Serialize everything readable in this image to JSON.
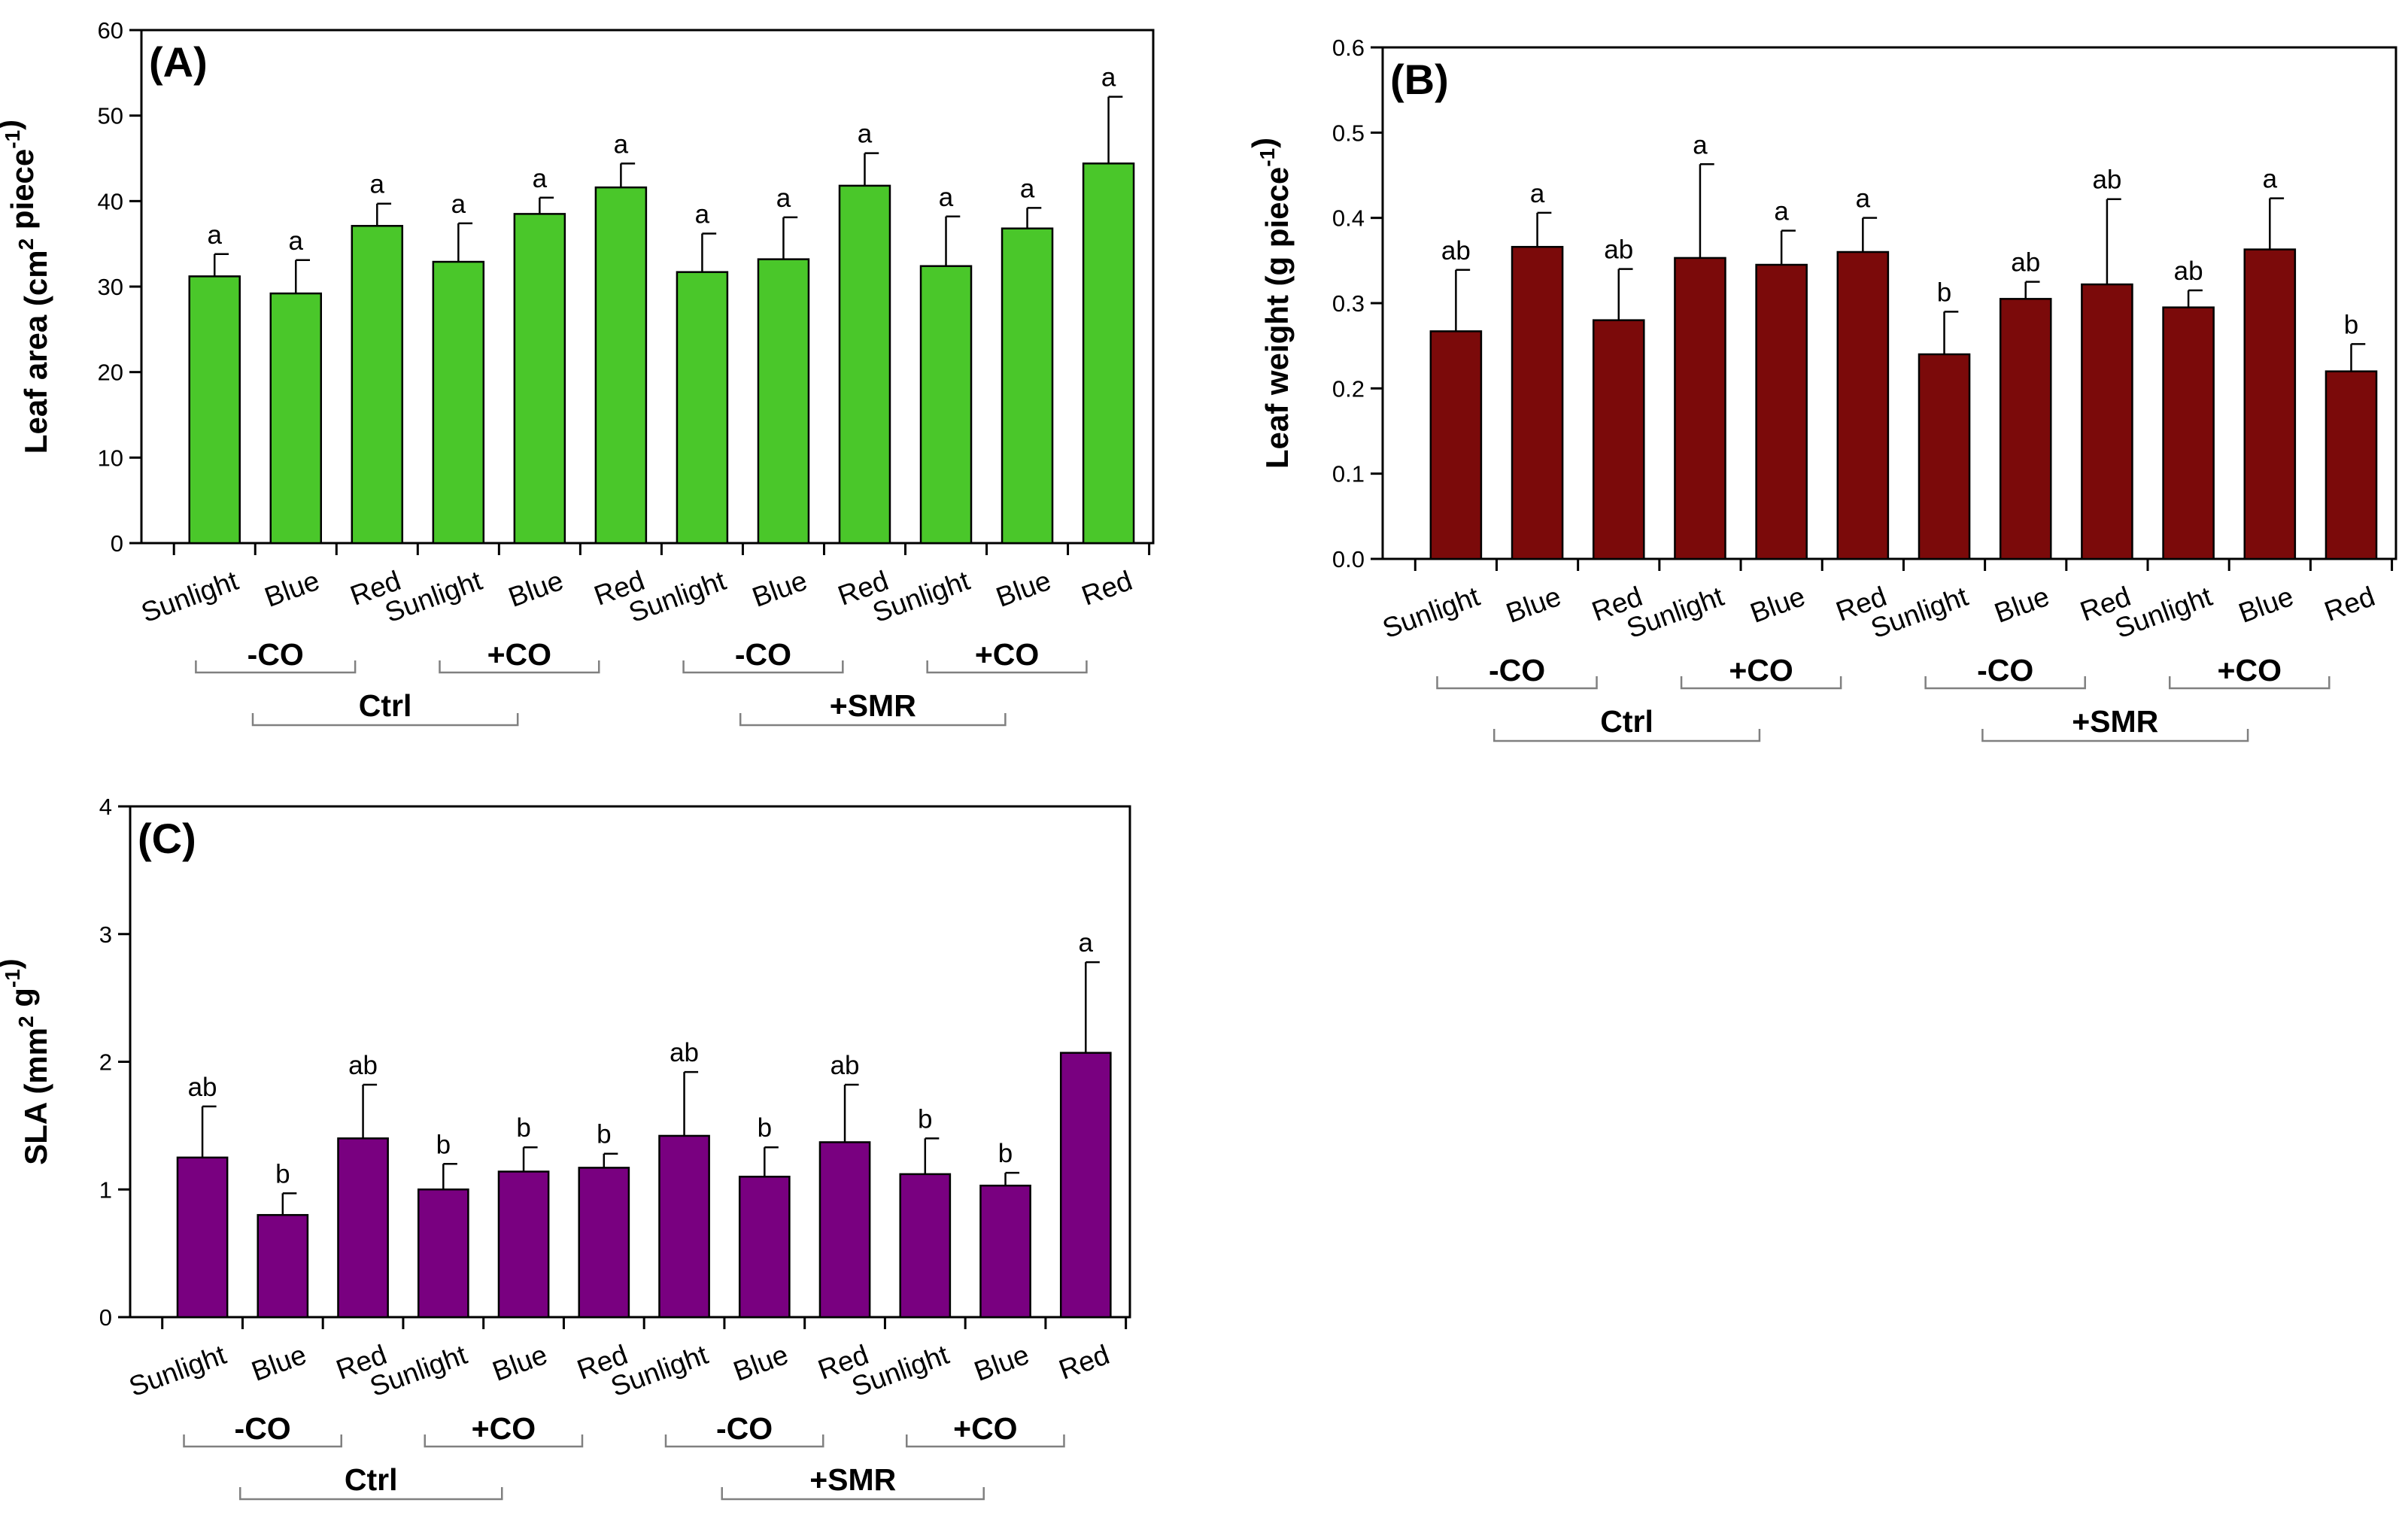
{
  "chart_data": [
    {
      "type": "bar",
      "panel_label": "(A)",
      "ylabel": {
        "prefix": "Leaf area (cm",
        "sup1": "2",
        "middle": " piece",
        "sup2": "-1",
        "suffix": ")"
      },
      "ylim": [
        0,
        60
      ],
      "yticks": [
        "0",
        "10",
        "20",
        "30",
        "40",
        "50",
        "60"
      ],
      "bar_color": "#4ac72a",
      "categories": [
        "Sunlight",
        "Blue",
        "Red",
        "Sunlight",
        "Blue",
        "Red",
        "Sunlight",
        "Blue",
        "Red",
        "Sunlight",
        "Blue",
        "Red"
      ],
      "values": [
        31.2,
        29.2,
        37.1,
        32.9,
        38.5,
        41.6,
        31.7,
        33.2,
        41.8,
        32.4,
        36.8,
        44.4
      ],
      "errors": [
        2.6,
        3.9,
        2.6,
        4.5,
        1.9,
        2.8,
        4.5,
        4.9,
        3.8,
        5.8,
        2.4,
        7.8
      ],
      "letters": [
        "a",
        "a",
        "a",
        "a",
        "a",
        "a",
        "a",
        "a",
        "a",
        "a",
        "a",
        "a"
      ],
      "groups_inner": [
        "-CO",
        "+CO",
        "-CO",
        "+CO"
      ],
      "groups_outer": [
        "Ctrl",
        "+SMR"
      ]
    },
    {
      "type": "bar",
      "panel_label": "(B)",
      "ylabel": {
        "prefix": "Leaf weight (g piece",
        "sup1": "",
        "middle": "",
        "sup2": "-1",
        "suffix": ")"
      },
      "ylim": [
        0,
        0.6
      ],
      "yticks": [
        "0.0",
        "0.1",
        "0.2",
        "0.3",
        "0.4",
        "0.5",
        "0.6"
      ],
      "bar_color": "#7b0a0a",
      "categories": [
        "Sunlight",
        "Blue",
        "Red",
        "Sunlight",
        "Blue",
        "Red",
        "Sunlight",
        "Blue",
        "Red",
        "Sunlight",
        "Blue",
        "Red"
      ],
      "values": [
        0.267,
        0.366,
        0.28,
        0.353,
        0.345,
        0.36,
        0.24,
        0.305,
        0.322,
        0.295,
        0.363,
        0.22
      ],
      "errors": [
        0.072,
        0.04,
        0.06,
        0.11,
        0.04,
        0.04,
        0.05,
        0.02,
        0.1,
        0.02,
        0.06,
        0.032
      ],
      "letters": [
        "ab",
        "a",
        "ab",
        "a",
        "a",
        "a",
        "b",
        "ab",
        "ab",
        "ab",
        "a",
        "b"
      ],
      "groups_inner": [
        "-CO",
        "+CO",
        "-CO",
        "+CO"
      ],
      "groups_outer": [
        "Ctrl",
        "+SMR"
      ]
    },
    {
      "type": "bar",
      "panel_label": "(C)",
      "ylabel": {
        "prefix": "SLA (mm",
        "sup1": "2",
        "middle": " g",
        "sup2": "-1",
        "suffix": ")"
      },
      "ylim": [
        0,
        4
      ],
      "yticks": [
        "0",
        "1",
        "2",
        "3",
        "4"
      ],
      "bar_color": "#790080",
      "categories": [
        "Sunlight",
        "Blue",
        "Red",
        "Sunlight",
        "Blue",
        "Red",
        "Sunlight",
        "Blue",
        "Red",
        "Sunlight",
        "Blue",
        "Red"
      ],
      "values": [
        1.25,
        0.8,
        1.4,
        1.0,
        1.14,
        1.17,
        1.42,
        1.1,
        1.37,
        1.12,
        1.03,
        2.07
      ],
      "errors": [
        0.4,
        0.17,
        0.42,
        0.2,
        0.19,
        0.11,
        0.5,
        0.23,
        0.45,
        0.28,
        0.1,
        0.71
      ],
      "letters": [
        "ab",
        "b",
        "ab",
        "b",
        "b",
        "b",
        "ab",
        "b",
        "ab",
        "b",
        "b",
        "a"
      ],
      "groups_inner": [
        "-CO",
        "+CO",
        "-CO",
        "+CO"
      ],
      "groups_outer": [
        "Ctrl",
        "+SMR"
      ]
    }
  ]
}
